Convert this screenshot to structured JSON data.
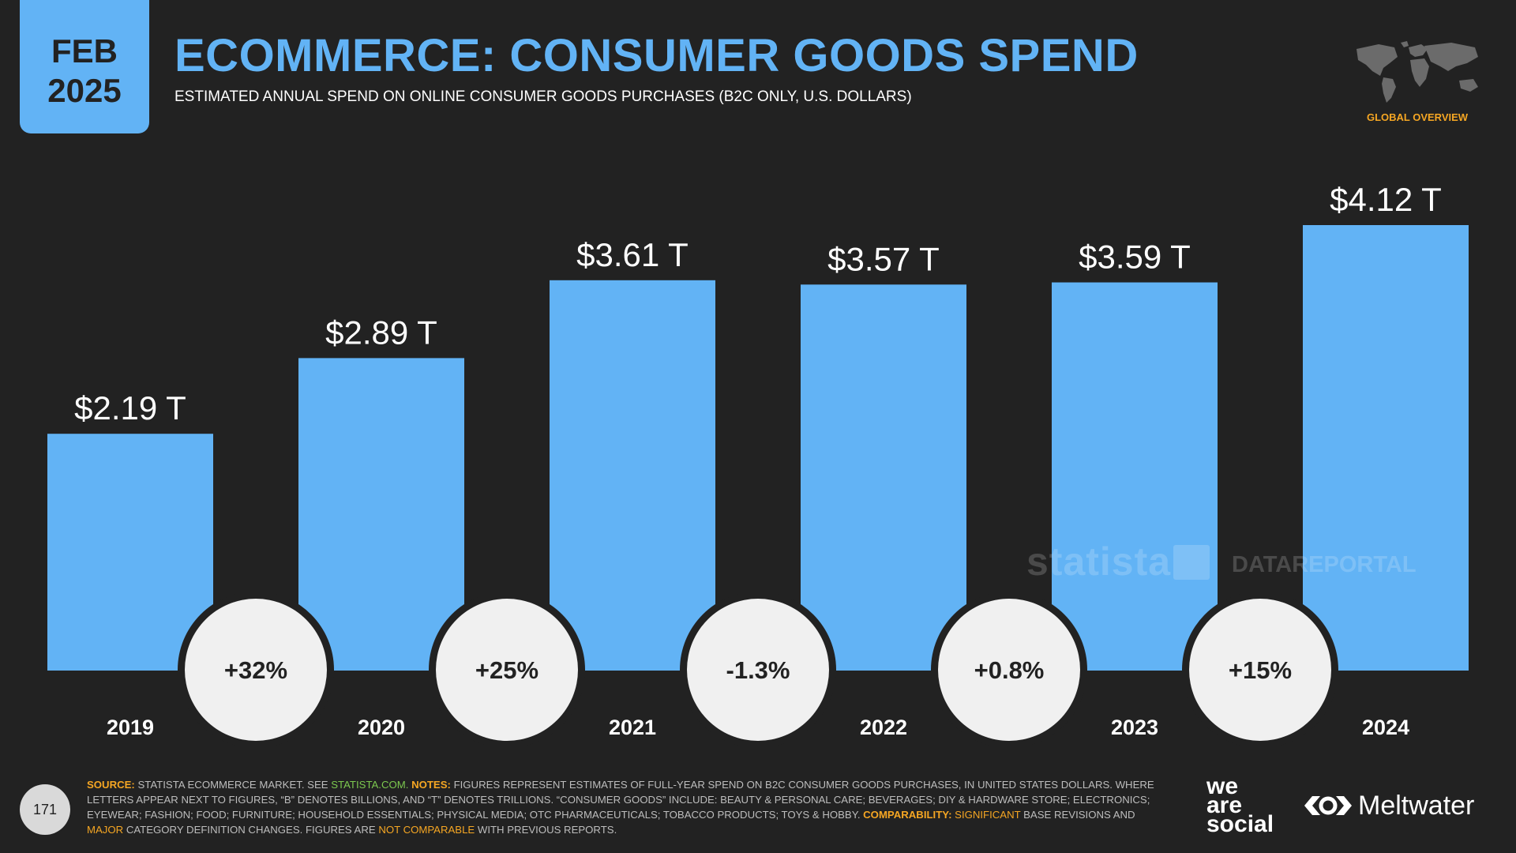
{
  "header": {
    "month": "FEB",
    "year": "2025",
    "title": "ECOMMERCE: CONSUMER GOODS SPEND",
    "subtitle": "ESTIMATED ANNUAL SPEND ON ONLINE CONSUMER GOODS PURCHASES (B2C ONLY, U.S. DOLLARS)",
    "overview_label": "GLOBAL OVERVIEW"
  },
  "chart_data": {
    "type": "bar",
    "title": "ECOMMERCE: CONSUMER GOODS SPEND",
    "subtitle": "ESTIMATED ANNUAL SPEND ON ONLINE CONSUMER GOODS PURCHASES (B2C ONLY, U.S. DOLLARS)",
    "categories": [
      "2019",
      "2020",
      "2021",
      "2022",
      "2023",
      "2024"
    ],
    "values": [
      2.19,
      2.89,
      3.61,
      3.57,
      3.59,
      4.12
    ],
    "value_labels": [
      "$2.19 T",
      "$2.89 T",
      "$3.61 T",
      "$3.57 T",
      "$3.59 T",
      "$4.12 T"
    ],
    "units": "U.S. dollars (trillions)",
    "changes": [
      "+32%",
      "+25%",
      "-1.3%",
      "+0.8%",
      "+15%"
    ],
    "ylim": [
      0,
      4.12
    ],
    "grid": false,
    "legend": "none",
    "bar_color": "#62b3f5",
    "change_bubble_color": "#f0f0f0"
  },
  "watermarks": {
    "statista": "statista",
    "datareportal": "DATAREPORTAL"
  },
  "footer": {
    "page_number": "171",
    "source_key": "SOURCE:",
    "source_text": "STATISTA ECOMMERCE MARKET. SEE",
    "source_link": "STATISTA.COM.",
    "notes_key": "NOTES:",
    "notes_text": "FIGURES REPRESENT ESTIMATES OF FULL-YEAR SPEND ON B2C CONSUMER GOODS PURCHASES, IN UNITED STATES DOLLARS. WHERE LETTERS APPEAR NEXT TO FIGURES, “B” DENOTES BILLIONS, AND “T” DENOTES TRILLIONS. “CONSUMER GOODS” INCLUDE: BEAUTY & PERSONAL CARE; BEVERAGES; DIY & HARDWARE STORE; ELECTRONICS; EYEWEAR; FASHION; FOOD; FURNITURE; HOUSEHOLD ESSENTIALS; PHYSICAL MEDIA; OTC PHARMACEUTICALS; TOBACCO PRODUCTS; TOYS & HOBBY.",
    "comparability_key": "COMPARABILITY:",
    "significant": "SIGNIFICANT",
    "comparability_text_1": "BASE REVISIONS AND",
    "major": "MAJOR",
    "comparability_text_2": "CATEGORY DEFINITION CHANGES. FIGURES ARE",
    "not_comparable": "NOT COMPARABLE",
    "comparability_text_3": "WITH PREVIOUS REPORTS.",
    "brand_line_1": "we",
    "brand_line_2": "are",
    "brand_line_3": "social",
    "meltwater": "Meltwater",
    "colors": {
      "accent": "#62b3f5",
      "highlight": "#f5a623",
      "link": "#7cc84f",
      "background": "#222222"
    }
  }
}
